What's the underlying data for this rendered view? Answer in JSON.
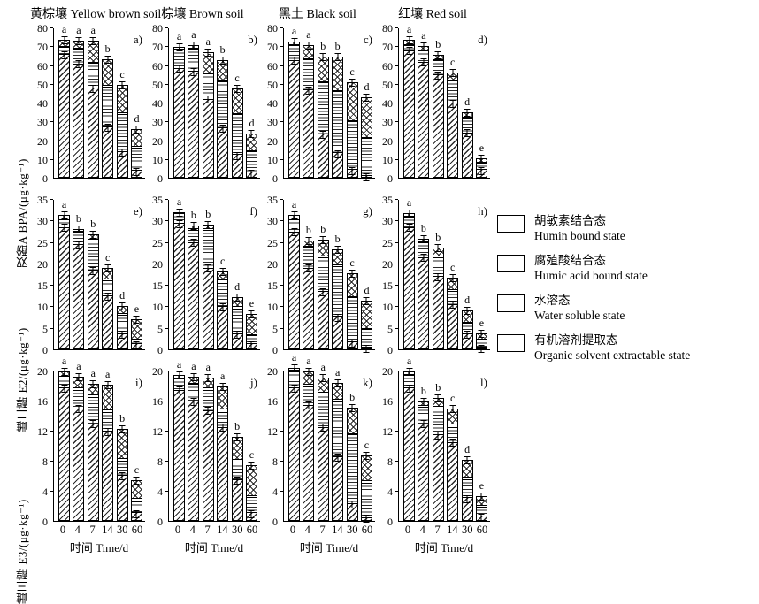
{
  "chart_data": {
    "type": "bar",
    "subtype": "stacked-bar-grid",
    "grid": "3 rows x 4 columns of panels",
    "categories": [
      "0",
      "4",
      "7",
      "14",
      "30",
      "60"
    ],
    "xlabel": "时间 Time/d",
    "error_bars": true,
    "stack_order_bottom_to_top": [
      "有机溶剂提取态 Organic solvent extractable state",
      "腐殖酸结合态 Humic acid bound state",
      "水溶态 Water soluble state",
      "胡敏素结合态 Humin bound state"
    ],
    "legend": [
      {
        "pattern": "crosshatch",
        "label_cn": "胡敏素结合态",
        "label_en": "Humin bound state"
      },
      {
        "pattern": "hlines",
        "label_cn": "腐殖酸结合态",
        "label_en": "Humic acid bound state"
      },
      {
        "pattern": "plain",
        "label_cn": "水溶态",
        "label_en": "Water soluble state"
      },
      {
        "pattern": "diagonal",
        "label_cn": "有机溶剂提取态",
        "label_en": "Organic solvent extractable state"
      }
    ],
    "columns": [
      "黄棕壤 Yellow brown soil",
      "棕壤 Brown soil",
      "黑土 Black soil",
      "红壤 Red soil"
    ],
    "rows": [
      {
        "ylabel": "双酚A BPA/(μg·kg⁻¹)",
        "ymax": 80,
        "ystep": 10
      },
      {
        "ylabel": "雌二醇 E2/(μg·kg⁻¹)",
        "ymax": 35,
        "ystep": 5
      },
      {
        "ylabel": "雌三醇 E3/(μg·kg⁻¹)",
        "ymax": 20,
        "ystep": 4
      }
    ],
    "panels": [
      {
        "label": "a)",
        "row": 0,
        "col": 0,
        "letters": [
          "a",
          "a",
          "a",
          "b",
          "c",
          "d"
        ],
        "stacks": [
          [
            66,
            4,
            0.5,
            3.5
          ],
          [
            61,
            8,
            0.5,
            4
          ],
          [
            48,
            13.5,
            0.5,
            11.5
          ],
          [
            27,
            21.5,
            1,
            14
          ],
          [
            13.5,
            20.5,
            1,
            14.5
          ],
          [
            3.5,
            12,
            1,
            9.5
          ]
        ]
      },
      {
        "label": "b)",
        "row": 0,
        "col": 1,
        "letters": [
          "a",
          "a",
          "a",
          "b",
          "c",
          "d"
        ],
        "stacks": [
          [
            58.5,
            10,
            0.5,
            1
          ],
          [
            57,
            12,
            0.5,
            1.5
          ],
          [
            42,
            13.5,
            0.5,
            11
          ],
          [
            26.5,
            25,
            0.5,
            11
          ],
          [
            12,
            22,
            0.5,
            13.5
          ],
          [
            2.5,
            11.5,
            0.5,
            9
          ]
        ]
      },
      {
        "label": "c)",
        "row": 0,
        "col": 2,
        "letters": [
          "a",
          "a",
          "b",
          "b",
          "c",
          "d"
        ],
        "stacks": [
          [
            63,
            8,
            0.5,
            1.5
          ],
          [
            47,
            16.5,
            0.5,
            7
          ],
          [
            23,
            28,
            0.5,
            13.5
          ],
          [
            13,
            33,
            0.5,
            18.5
          ],
          [
            4,
            26,
            0.5,
            20.5
          ],
          [
            0.5,
            20.5,
            0.5,
            21.5
          ]
        ]
      },
      {
        "label": "d)",
        "row": 0,
        "col": 3,
        "letters": [
          "a",
          "a",
          "b",
          "c",
          "d",
          "e"
        ],
        "stacks": [
          [
            68,
            3,
            0.5,
            2.5
          ],
          [
            62,
            6,
            0.5,
            2
          ],
          [
            55,
            8,
            0.5,
            2.5
          ],
          [
            40,
            12,
            0.5,
            4
          ],
          [
            24,
            8,
            0.5,
            2.5
          ],
          [
            4,
            4,
            0.5,
            2
          ]
        ]
      },
      {
        "label": "e)",
        "row": 1,
        "col": 0,
        "letters": [
          "a",
          "b",
          "b",
          "c",
          "d",
          "e"
        ],
        "stacks": [
          [
            28.5,
            2,
            0.3,
            0.7
          ],
          [
            24.5,
            3,
            0.2,
            0.5
          ],
          [
            18.5,
            7,
            0.3,
            1.2
          ],
          [
            12.5,
            3.5,
            0.5,
            2.5
          ],
          [
            3.5,
            4.5,
            0.4,
            1.8
          ],
          [
            1,
            1,
            0.3,
            4.7
          ]
        ]
      },
      {
        "label": "f)",
        "row": 1,
        "col": 1,
        "letters": [
          "a",
          "b",
          "b",
          "c",
          "d",
          "e"
        ],
        "stacks": [
          [
            29.5,
            2.3,
            0.2,
            0.2
          ],
          [
            25,
            3,
            0.3,
            0.7
          ],
          [
            19,
            9,
            0.3,
            0.9
          ],
          [
            10,
            5.5,
            0.8,
            1.9
          ],
          [
            3.5,
            6,
            0.5,
            2.3
          ],
          [
            1,
            2,
            0.3,
            5
          ]
        ]
      },
      {
        "label": "g)",
        "row": 1,
        "col": 2,
        "letters": [
          "a",
          "b",
          "b",
          "b",
          "c",
          "d"
        ],
        "stacks": [
          [
            27.5,
            3,
            0.3,
            0.7
          ],
          [
            19,
            5,
            0.3,
            1.2
          ],
          [
            13.5,
            8,
            0.4,
            3.8
          ],
          [
            7.5,
            12,
            0.4,
            3.6
          ],
          [
            1.5,
            10.5,
            0.3,
            5.5
          ],
          [
            0.3,
            4.2,
            0.3,
            6.5
          ]
        ]
      },
      {
        "label": "h)",
        "row": 1,
        "col": 3,
        "letters": [
          "a",
          "b",
          "b",
          "c",
          "d",
          "e"
        ],
        "stacks": [
          [
            28.5,
            2.5,
            0.3,
            0.5
          ],
          [
            21.5,
            3.5,
            0.3,
            0.5
          ],
          [
            17,
            4.5,
            0.5,
            1.8
          ],
          [
            10.5,
            3,
            0.5,
            2.8
          ],
          [
            3.5,
            2.5,
            0.4,
            2.8
          ],
          [
            0.3,
            1.7,
            0.3,
            1.5
          ]
        ]
      },
      {
        "label": "i)",
        "row": 2,
        "col": 0,
        "letters": [
          "a",
          "a",
          "a",
          "a",
          "b",
          "c"
        ],
        "stacks": [
          [
            17.8,
            1.4,
            0.2,
            0.6
          ],
          [
            15,
            2.5,
            0.3,
            1.5
          ],
          [
            13,
            3.5,
            0.4,
            1.4
          ],
          [
            12,
            2.5,
            0.4,
            3.3
          ],
          [
            6,
            2,
            0.3,
            4
          ],
          [
            1,
            1.5,
            0.5,
            2.5
          ]
        ]
      },
      {
        "label": "j)",
        "row": 2,
        "col": 1,
        "letters": [
          "a",
          "a",
          "a",
          "a",
          "b",
          "c"
        ],
        "stacks": [
          [
            17.5,
            1.5,
            0.2,
            0.3
          ],
          [
            16,
            2.3,
            0.2,
            0.8
          ],
          [
            14.8,
            2.7,
            0.3,
            1.4
          ],
          [
            12.5,
            2,
            0.5,
            3
          ],
          [
            5.5,
            2.3,
            0.4,
            3
          ],
          [
            1,
            2,
            0.3,
            4.2
          ]
        ]
      },
      {
        "label": "k)",
        "row": 2,
        "col": 2,
        "letters": [
          "a",
          "a",
          "a",
          "a",
          "b",
          "c"
        ],
        "stacks": [
          [
            17.8,
            2.2,
            0.2,
            0.3
          ],
          [
            15.5,
            2.5,
            0.3,
            1.7
          ],
          [
            12.5,
            4.5,
            0.3,
            1.9
          ],
          [
            8.5,
            7.5,
            0.3,
            2.2
          ],
          [
            2.2,
            9.3,
            0.2,
            3.5
          ],
          [
            0.3,
            4.7,
            0.3,
            3.5
          ]
        ]
      },
      {
        "label": "l)",
        "row": 2,
        "col": 3,
        "letters": [
          "a",
          "b",
          "b",
          "c",
          "d",
          "e"
        ],
        "stacks": [
          [
            17.8,
            1.7,
            0.2,
            0.3
          ],
          [
            13,
            2.3,
            0.2,
            0.5
          ],
          [
            11.5,
            3.5,
            0.4,
            1.1
          ],
          [
            10.5,
            2,
            0.5,
            2
          ],
          [
            3,
            2.5,
            0.4,
            2.3
          ],
          [
            0.5,
            1.3,
            0.3,
            1.2
          ]
        ]
      }
    ]
  }
}
